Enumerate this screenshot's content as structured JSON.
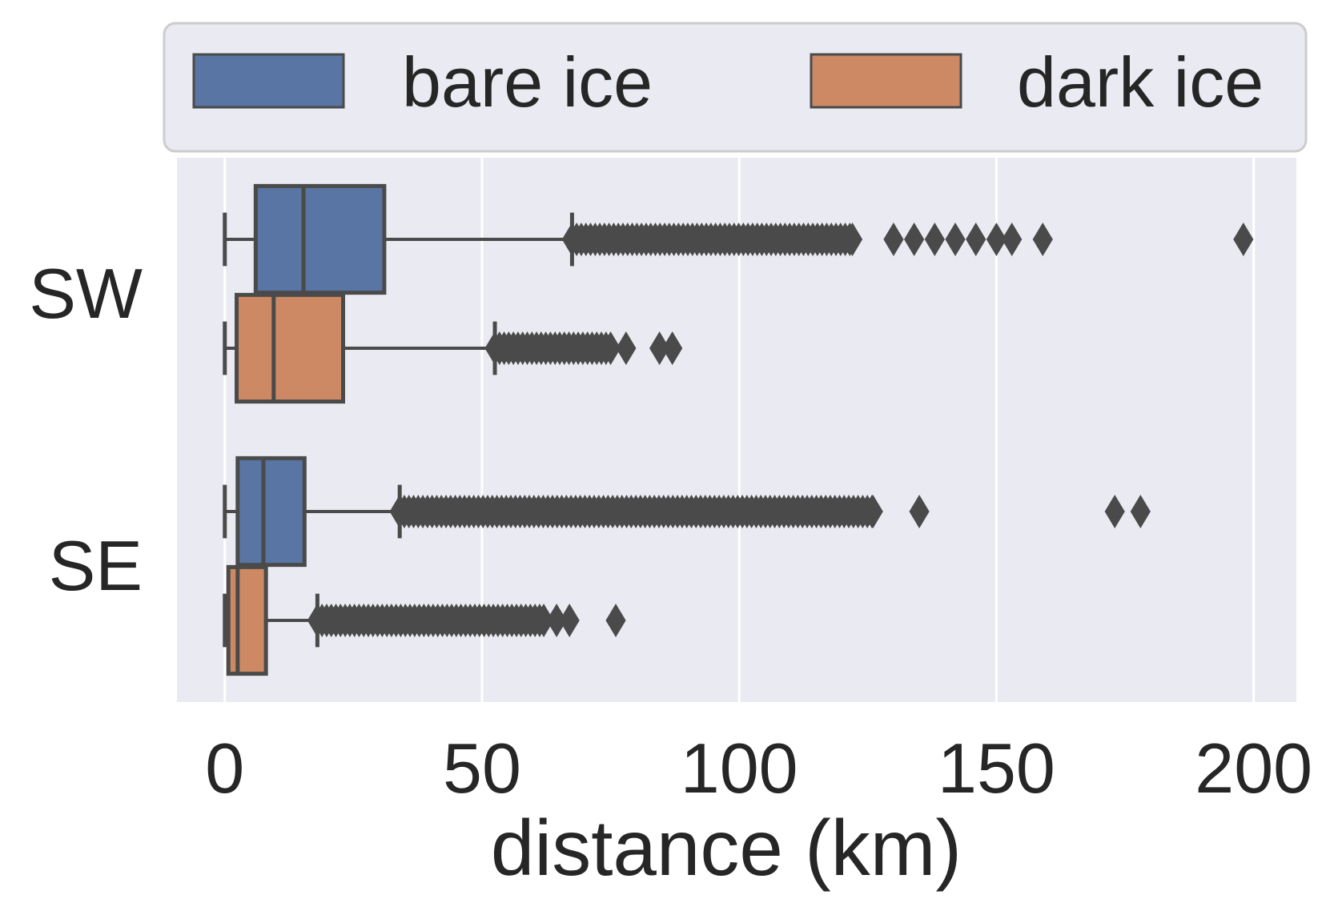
{
  "chart_data": {
    "type": "boxplot",
    "orientation": "horizontal",
    "title": "",
    "xlabel": "distance (km)",
    "ylabel": "",
    "xlim": [
      -9.3,
      208.3
    ],
    "xticks": [
      0,
      50,
      100,
      150,
      200
    ],
    "grid": true,
    "legend_position": "top",
    "categories": [
      "SW",
      "SE"
    ],
    "series": [
      {
        "name": "bare ice",
        "color": "#5875a4",
        "boxes": [
          {
            "category": "SW",
            "whisker_low": 0,
            "q1": 6,
            "median": 15.3,
            "q3": 31,
            "whisker_high": 67.5,
            "outliers_dense_range": [
              67.5,
              122
            ],
            "outliers": [
              130,
              134,
              138,
              142,
              146,
              150,
              153,
              159,
              198
            ]
          },
          {
            "category": "SE",
            "whisker_low": 0,
            "q1": 2.5,
            "median": 7.5,
            "q3": 15.5,
            "whisker_high": 34,
            "outliers_dense_range": [
              34,
              126
            ],
            "outliers": [
              135,
              173,
              178
            ]
          }
        ]
      },
      {
        "name": "dark ice",
        "color": "#cc8963",
        "boxes": [
          {
            "category": "SW",
            "whisker_low": 0,
            "q1": 2.3,
            "median": 9.5,
            "q3": 23,
            "whisker_high": 52.5,
            "outliers_dense_range": [
              52.5,
              75
            ],
            "outliers": [
              78,
              84.5,
              87
            ]
          },
          {
            "category": "SE",
            "whisker_low": 0,
            "q1": 0.7,
            "median": 2.5,
            "q3": 8,
            "whisker_high": 18,
            "outliers_dense_range": [
              18,
              62
            ],
            "outliers": [
              64.5,
              67,
              76
            ]
          }
        ]
      }
    ]
  }
}
